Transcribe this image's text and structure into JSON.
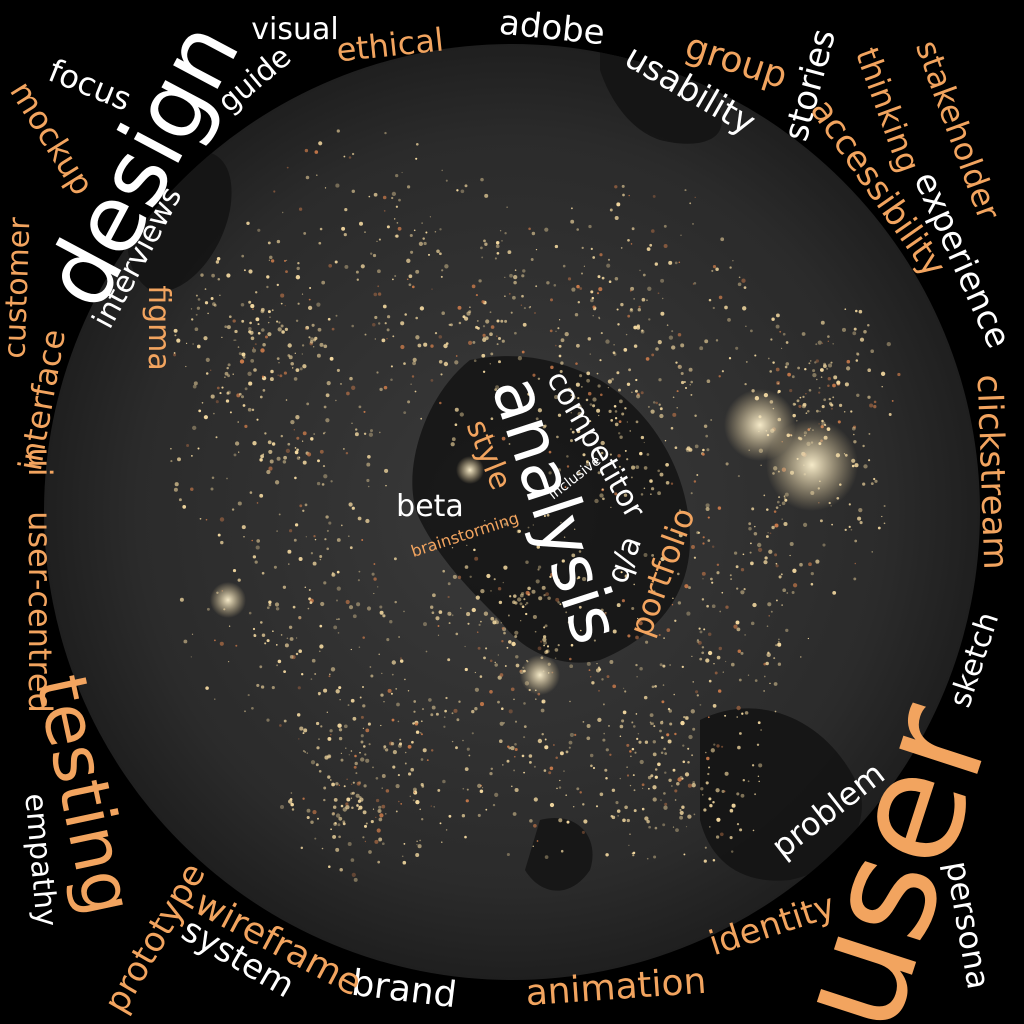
{
  "palette": {
    "background": "#000000",
    "globe": "#2a2a2a",
    "light_glow": "#f4d9a0",
    "accent_orange": "#f2a45f",
    "text_white": "#ffffff"
  },
  "words": {
    "design": "design",
    "user": "user",
    "testing": "testing",
    "analysis": "analysis",
    "interviews": "interviews",
    "visual": "visual",
    "guide": "guide",
    "focus": "focus",
    "mockup": "mockup",
    "ethical": "ethical",
    "adobe": "adobe",
    "usability": "usability",
    "group": "group",
    "stories": "stories",
    "thinking": "thinking",
    "stakeholder": "stakeholder",
    "accessibility": "accessibility",
    "experience": "experience",
    "clickstream": "clickstream",
    "sketch": "sketch",
    "persona": "persona",
    "problem": "problem",
    "identity": "identity",
    "animation": "animation",
    "brand": "brand",
    "wireframe": "wireframe",
    "system": "system",
    "prototype": "prototype",
    "empathy": "empathy",
    "user_centred": "user-centred",
    "ui": "ui",
    "interface": "interface",
    "customer": "customer",
    "figma": "figma",
    "competitor": "competitor",
    "style": "style",
    "inclusive": "inclusive",
    "beta": "beta",
    "brainstorming": "brainstorming",
    "portfolio": "portfolio",
    "qa": "q/a"
  }
}
